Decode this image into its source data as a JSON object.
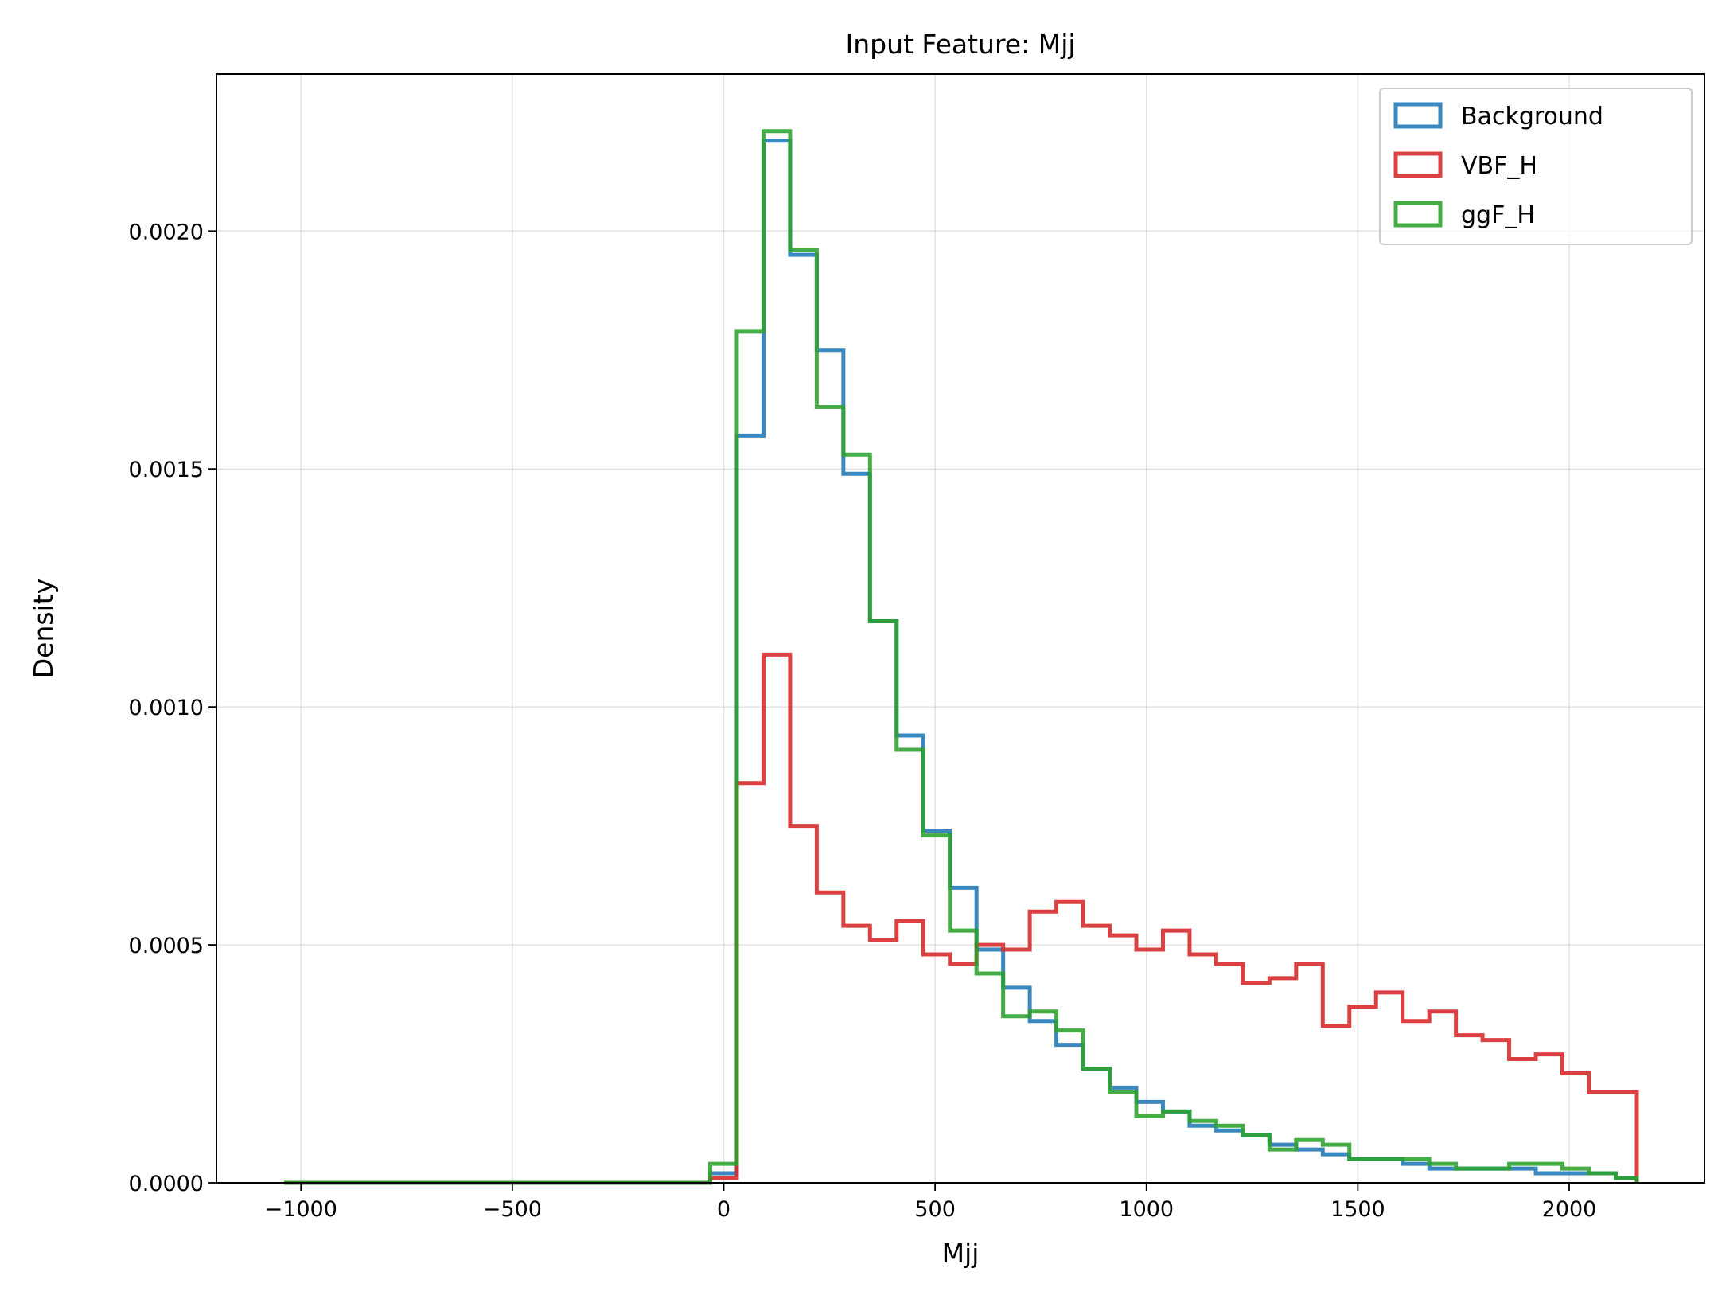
{
  "chart_data": {
    "type": "histogram-step",
    "title": "Input Feature: Mjj",
    "xlabel": "Mjj",
    "ylabel": "Density",
    "xlim": [
      -1200,
      2320
    ],
    "ylim": [
      0,
      0.00233
    ],
    "xticks": [
      -1000,
      -500,
      0,
      500,
      1000,
      1500,
      2000
    ],
    "xtick_labels": [
      "−1000",
      "−500",
      "0",
      "500",
      "1000",
      "1500",
      "2000"
    ],
    "yticks": [
      0,
      0.0005,
      0.001,
      0.0015,
      0.002
    ],
    "ytick_labels": [
      "0.0000",
      "0.0005",
      "0.0010",
      "0.0015",
      "0.0020"
    ],
    "grid": true,
    "legend_position": "top-right",
    "bin_edges": [
      -1040,
      -977,
      -914,
      -851,
      -788,
      -725,
      -662,
      -599,
      -536,
      -473,
      -410,
      -347,
      -284,
      -221,
      -158,
      -95,
      -32,
      31,
      94,
      157,
      220,
      283,
      346,
      409,
      472,
      535,
      598,
      661,
      724,
      787,
      850,
      913,
      976,
      1039,
      1102,
      1165,
      1228,
      1291,
      1354,
      1417,
      1480,
      1543,
      1606,
      1669,
      1732,
      1795,
      1858,
      1921,
      1984,
      2047,
      2110,
      2160
    ],
    "series": [
      {
        "name": "Background",
        "color": "#1f77b4",
        "values": [
          0,
          0,
          0,
          0,
          0,
          0,
          0,
          0,
          0,
          0,
          0,
          0,
          0,
          0,
          0,
          0,
          2e-05,
          0.00157,
          0.00219,
          0.00195,
          0.00175,
          0.00149,
          0.00118,
          0.00094,
          0.00074,
          0.00062,
          0.00049,
          0.00041,
          0.00034,
          0.00029,
          0.00024,
          0.0002,
          0.00017,
          0.00015,
          0.00012,
          0.00011,
          0.0001,
          8e-05,
          7e-05,
          6e-05,
          5e-05,
          5e-05,
          4e-05,
          3e-05,
          3e-05,
          3e-05,
          3e-05,
          2e-05,
          2e-05,
          2e-05,
          1e-05
        ]
      },
      {
        "name": "VBF_H",
        "color": "#d62728",
        "values": [
          0,
          0,
          0,
          0,
          0,
          0,
          0,
          0,
          0,
          0,
          0,
          0,
          0,
          0,
          0,
          0,
          1e-05,
          0.00084,
          0.00111,
          0.00075,
          0.00061,
          0.00054,
          0.00051,
          0.00055,
          0.00048,
          0.00046,
          0.0005,
          0.00049,
          0.00057,
          0.00059,
          0.00054,
          0.00052,
          0.00049,
          0.00053,
          0.00048,
          0.00046,
          0.00042,
          0.00043,
          0.00046,
          0.00033,
          0.00037,
          0.0004,
          0.00034,
          0.00036,
          0.00031,
          0.0003,
          0.00026,
          0.00027,
          0.00023,
          0.00019,
          0.00019
        ]
      },
      {
        "name": "ggF_H",
        "color": "#2ca02c",
        "values": [
          0,
          0,
          0,
          0,
          0,
          0,
          0,
          0,
          0,
          0,
          0,
          0,
          0,
          0,
          0,
          0,
          4e-05,
          0.00179,
          0.00221,
          0.00196,
          0.00163,
          0.00153,
          0.00118,
          0.00091,
          0.00073,
          0.00053,
          0.00044,
          0.00035,
          0.00036,
          0.00032,
          0.00024,
          0.00019,
          0.00014,
          0.00015,
          0.00013,
          0.00012,
          0.0001,
          7e-05,
          9e-05,
          8e-05,
          5e-05,
          5e-05,
          5e-05,
          4e-05,
          3e-05,
          3e-05,
          4e-05,
          4e-05,
          3e-05,
          2e-05,
          1e-05
        ]
      }
    ]
  }
}
